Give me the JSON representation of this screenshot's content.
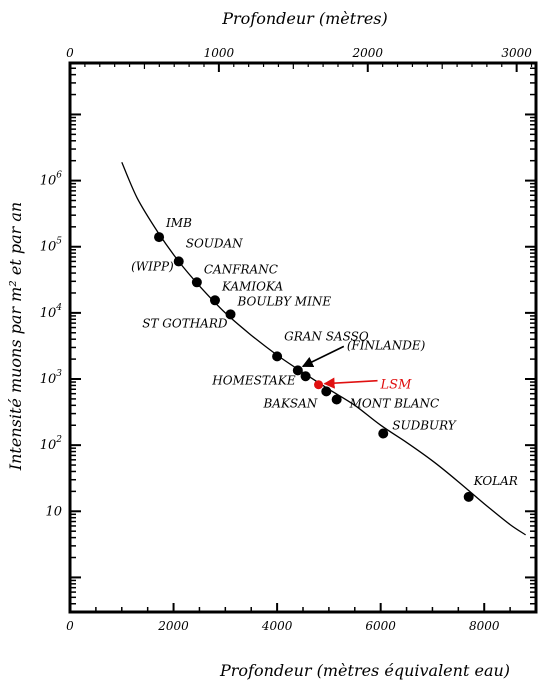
{
  "chart_data": {
    "type": "scatter",
    "title": "",
    "xlabel": "Profondeur (mètres équivalent eau)",
    "x2label": "Profondeur (mètres)",
    "ylabel": "Intensité muons par m² et par an",
    "log_y": true,
    "xlim": [
      0,
      9000
    ],
    "x2lim": [
      0,
      3130
    ],
    "ylim": [
      0.3,
      60000000
    ],
    "x_ticks": [
      0,
      2000,
      4000,
      6000,
      8000
    ],
    "x_tick_labels": [
      "0",
      "2000",
      "4000",
      "6000",
      "8000"
    ],
    "x2_ticks": [
      0,
      1000,
      2000,
      3000
    ],
    "x2_tick_labels": [
      "0",
      "1000",
      "2000",
      "3000"
    ],
    "y_ticks": [
      10,
      100,
      1000,
      10000,
      100000,
      1000000
    ],
    "y_tick_labels": [
      {
        "base": "10",
        "exp": ""
      },
      {
        "base": "10",
        "exp": "2"
      },
      {
        "base": "10",
        "exp": "3"
      },
      {
        "base": "10",
        "exp": "4"
      },
      {
        "base": "10",
        "exp": "5"
      },
      {
        "base": "10",
        "exp": "6"
      }
    ],
    "curve": {
      "x": [
        1000,
        1300,
        1700,
        2100,
        2500,
        3000,
        3500,
        4000,
        4500,
        5000,
        5500,
        6000,
        6500,
        7000,
        7500,
        8000,
        8500,
        8800
      ],
      "y": [
        1900000,
        540000,
        165000,
        60000,
        25600,
        10000,
        4600,
        2300,
        1250,
        700,
        400,
        200,
        110,
        58,
        28,
        13,
        6.3,
        4.4
      ]
    },
    "points": [
      {
        "name": "IMB",
        "x": 1720,
        "y": 140000,
        "color": "#000000"
      },
      {
        "name": "SOUDAN",
        "x": 2100,
        "y": 60000,
        "color": "#000000"
      },
      {
        "name": "(WIPP)",
        "x": 2100,
        "y": 60000,
        "color": "#000000"
      },
      {
        "name": "CANFRANC",
        "x": 2450,
        "y": 29000,
        "color": "#000000"
      },
      {
        "name": "KAMIOKA",
        "x": 2800,
        "y": 15500,
        "color": "#000000"
      },
      {
        "name": "BOULBY MINE",
        "x": 3100,
        "y": 9500,
        "color": "#000000"
      },
      {
        "name": "ST GOTHARD",
        "x": 3100,
        "y": 9500,
        "color": "#000000"
      },
      {
        "name": "GRAN SASSO",
        "x": 4000,
        "y": 2200,
        "color": "#000000"
      },
      {
        "name": "(FINLANDE)",
        "x": 4400,
        "y": 1350,
        "color": "#000000"
      },
      {
        "name": "HOMESTAKE",
        "x": 4550,
        "y": 1100,
        "color": "#000000"
      },
      {
        "name": "LSM",
        "x": 4800,
        "y": 820,
        "color": "#e01010"
      },
      {
        "name": "BAKSAN",
        "x": 4950,
        "y": 650,
        "color": "#000000"
      },
      {
        "name": "MONT BLANC",
        "x": 5150,
        "y": 490,
        "color": "#000000"
      },
      {
        "name": "SUDBURY",
        "x": 6050,
        "y": 150,
        "color": "#000000"
      },
      {
        "name": "KOLAR",
        "x": 7700,
        "y": 16.5,
        "color": "#000000"
      }
    ],
    "grid": false,
    "legend": "none",
    "arrow_color_label": "#000000",
    "arrow_color_highlight": "#e01010"
  }
}
